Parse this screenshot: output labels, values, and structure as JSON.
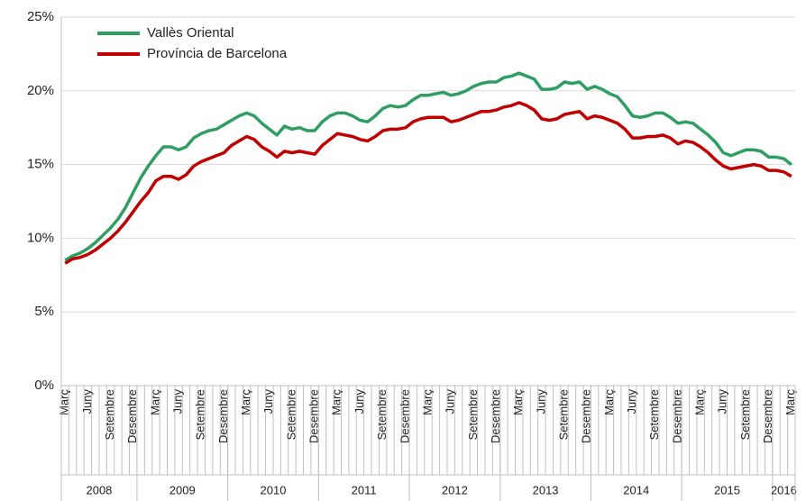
{
  "chart_data": {
    "type": "line",
    "categories": [
      "Març",
      null,
      null,
      "Juny",
      null,
      null,
      "Setembre",
      null,
      null,
      "Desembre",
      null,
      null,
      "Març",
      null,
      null,
      "Juny",
      null,
      null,
      "Setembre",
      null,
      null,
      "Desembre",
      null,
      null,
      "Març",
      null,
      null,
      "Juny",
      null,
      null,
      "Setembre",
      null,
      null,
      "Desembre",
      null,
      null,
      "Març",
      null,
      null,
      "Juny",
      null,
      null,
      "Setembre",
      null,
      null,
      "Desembre",
      null,
      null,
      "Març",
      null,
      null,
      "Juny",
      null,
      null,
      "Setembre",
      null,
      null,
      "Desembre",
      null,
      null,
      "Març",
      null,
      null,
      "Juny",
      null,
      null,
      "Setembre",
      null,
      null,
      "Desembre",
      null,
      null,
      "Març",
      null,
      null,
      "Juny",
      null,
      null,
      "Setembre",
      null,
      null,
      "Desembre",
      null,
      null,
      "Març",
      null,
      null,
      "Juny",
      null,
      null,
      "Setembre",
      null,
      null,
      "Desembre",
      null,
      null,
      "Març"
    ],
    "years": [
      "2008",
      "2009",
      "2010",
      "2011",
      "2012",
      "2013",
      "2014",
      "2015",
      "2016"
    ],
    "series": [
      {
        "name": "Vallès Oriental",
        "color": "#2f9e62",
        "values": [
          8.5,
          8.8,
          9.0,
          9.3,
          9.7,
          10.2,
          10.7,
          11.3,
          12.1,
          13.1,
          14.1,
          14.9,
          15.6,
          16.2,
          16.2,
          16.0,
          16.2,
          16.8,
          17.1,
          17.3,
          17.4,
          17.7,
          18.0,
          18.3,
          18.5,
          18.3,
          17.8,
          17.4,
          17.0,
          17.6,
          17.4,
          17.5,
          17.3,
          17.3,
          17.9,
          18.3,
          18.5,
          18.5,
          18.3,
          18.0,
          17.9,
          18.3,
          18.8,
          19.0,
          18.9,
          19.0,
          19.4,
          19.7,
          19.7,
          19.8,
          19.9,
          19.7,
          19.8,
          20.0,
          20.3,
          20.5,
          20.6,
          20.6,
          20.9,
          21.0,
          21.2,
          21.0,
          20.8,
          20.1,
          20.1,
          20.2,
          20.6,
          20.5,
          20.6,
          20.1,
          20.3,
          20.1,
          19.8,
          19.6,
          19.0,
          18.3,
          18.2,
          18.3,
          18.5,
          18.5,
          18.2,
          17.8,
          17.9,
          17.8,
          17.4,
          17.0,
          16.5,
          15.8,
          15.6,
          15.8,
          16.0,
          16.0,
          15.9,
          15.5,
          15.5,
          15.4,
          15.0
        ]
      },
      {
        "name": "Província de Barcelona",
        "color": "#c00000",
        "values": [
          8.3,
          8.6,
          8.7,
          8.9,
          9.2,
          9.6,
          10.0,
          10.5,
          11.1,
          11.8,
          12.5,
          13.1,
          13.9,
          14.2,
          14.2,
          14.0,
          14.3,
          14.9,
          15.2,
          15.4,
          15.6,
          15.8,
          16.3,
          16.6,
          16.9,
          16.7,
          16.2,
          15.9,
          15.5,
          15.9,
          15.8,
          15.9,
          15.8,
          15.7,
          16.3,
          16.7,
          17.1,
          17.0,
          16.9,
          16.7,
          16.6,
          16.9,
          17.3,
          17.4,
          17.4,
          17.5,
          17.9,
          18.1,
          18.2,
          18.2,
          18.2,
          17.9,
          18.0,
          18.2,
          18.4,
          18.6,
          18.6,
          18.7,
          18.9,
          19.0,
          19.2,
          19.0,
          18.7,
          18.1,
          18.0,
          18.1,
          18.4,
          18.5,
          18.6,
          18.1,
          18.3,
          18.2,
          18.0,
          17.8,
          17.4,
          16.8,
          16.8,
          16.9,
          16.9,
          17.0,
          16.8,
          16.4,
          16.6,
          16.5,
          16.2,
          15.8,
          15.3,
          14.9,
          14.7,
          14.8,
          14.9,
          15.0,
          14.9,
          14.6,
          14.6,
          14.5,
          14.2
        ]
      }
    ],
    "ylim": [
      0,
      25
    ],
    "yticks": [
      {
        "value": 0,
        "label": "0%"
      },
      {
        "value": 5,
        "label": "5%"
      },
      {
        "value": 10,
        "label": "10%"
      },
      {
        "value": 15,
        "label": "15%"
      },
      {
        "value": 20,
        "label": "20%"
      },
      {
        "value": 25,
        "label": "25%"
      }
    ],
    "grid": true
  }
}
